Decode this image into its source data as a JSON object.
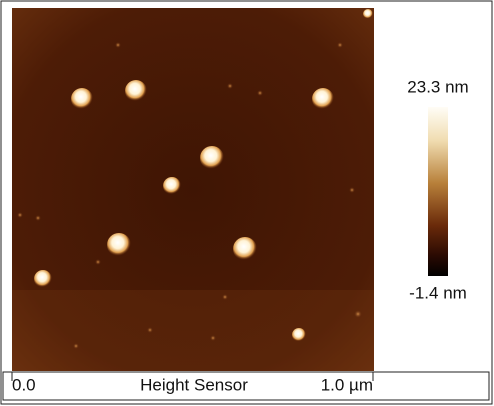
{
  "colorbar": {
    "max_label": "23.3 nm",
    "min_label": "-1.4 nm"
  },
  "scale": {
    "start": "0.0",
    "title": "Height Sensor",
    "end": "1.0 µm"
  }
}
